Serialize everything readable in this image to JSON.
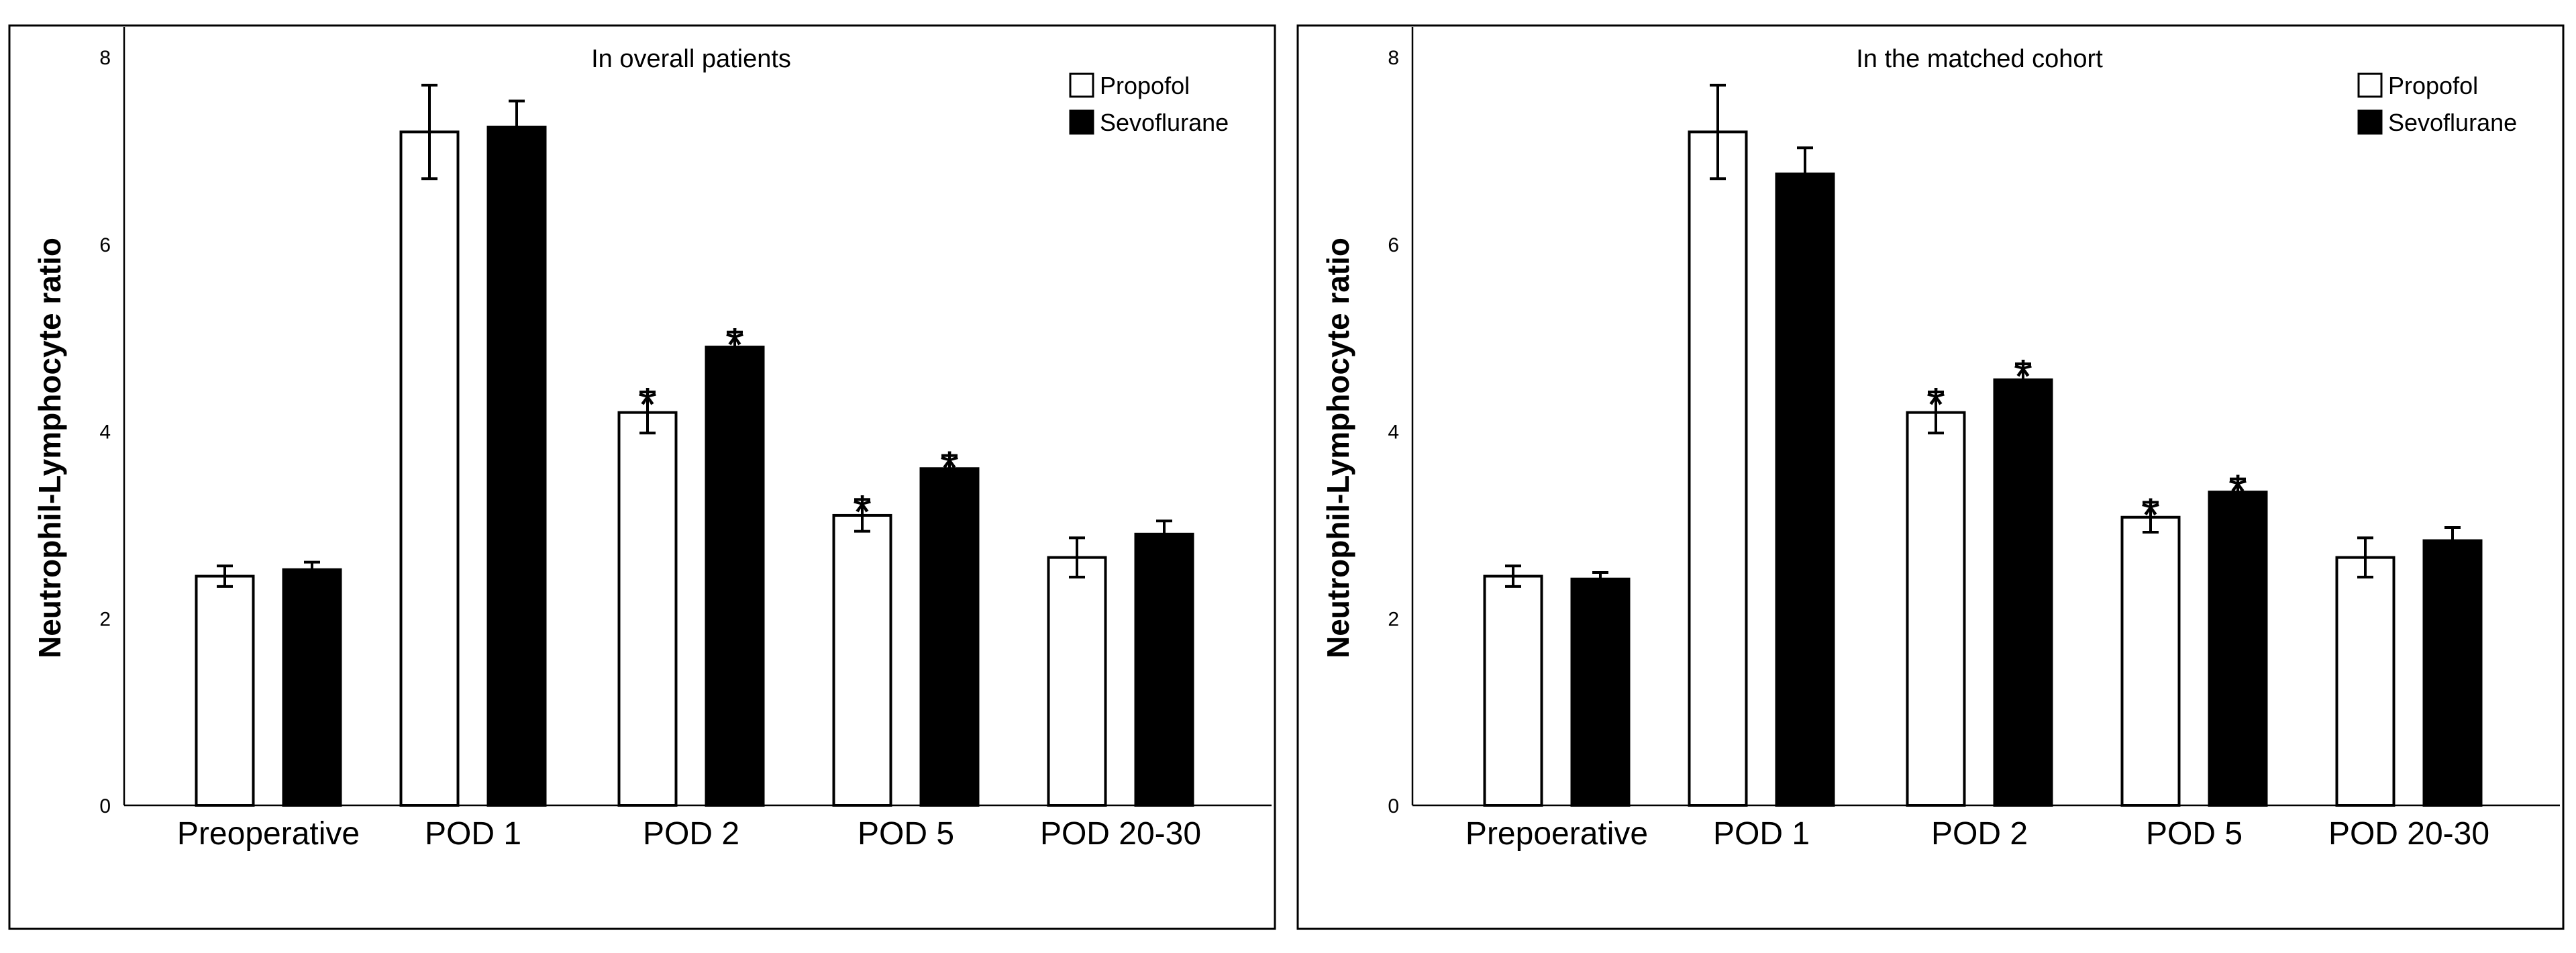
{
  "chart_data": [
    {
      "type": "bar",
      "title": "In overall patients",
      "ylabel": "Neutrophil-Lymphocyte ratio",
      "xlabel": "",
      "ylim": [
        0,
        8
      ],
      "yticks": [
        0,
        2,
        4,
        6,
        8
      ],
      "categories": [
        "Preoperative",
        "POD 1",
        "POD 2",
        "POD 5",
        "POD 20-30"
      ],
      "legend_position": "top-right",
      "series": [
        {
          "name": "Propofol",
          "fill": "#ffffff",
          "values": [
            2.45,
            7.2,
            4.2,
            3.1,
            2.65
          ],
          "errors": [
            0.11,
            0.5,
            0.22,
            0.17,
            0.21
          ],
          "significance": [
            "",
            "",
            "*",
            "*",
            ""
          ]
        },
        {
          "name": "Sevoflurane",
          "fill": "#000000",
          "values": [
            2.52,
            7.25,
            4.9,
            3.6,
            2.9
          ],
          "errors": [
            0.08,
            0.28,
            0.16,
            0.14,
            0.14
          ],
          "significance": [
            "",
            "",
            "*",
            "*",
            ""
          ]
        }
      ]
    },
    {
      "type": "bar",
      "title": "In the matched cohort",
      "ylabel": "Neutrophil-Lymphocyte ratio",
      "xlabel": "",
      "ylim": [
        0,
        8
      ],
      "yticks": [
        0,
        2,
        4,
        6,
        8
      ],
      "categories": [
        "Prepoerative",
        "POD  1",
        "POD 2",
        "POD 5",
        "POD 20-30"
      ],
      "legend_position": "top-right",
      "series": [
        {
          "name": "Propofol",
          "fill": "#ffffff",
          "values": [
            2.45,
            7.2,
            4.2,
            3.08,
            2.65
          ],
          "errors": [
            0.11,
            0.5,
            0.22,
            0.16,
            0.21
          ],
          "significance": [
            "",
            "",
            "*",
            "*",
            ""
          ]
        },
        {
          "name": "Sevoflurane",
          "fill": "#000000",
          "values": [
            2.42,
            6.75,
            4.55,
            3.35,
            2.83
          ],
          "errors": [
            0.07,
            0.28,
            0.17,
            0.14,
            0.14
          ],
          "significance": [
            "",
            "",
            "*",
            "*",
            ""
          ]
        }
      ]
    }
  ]
}
